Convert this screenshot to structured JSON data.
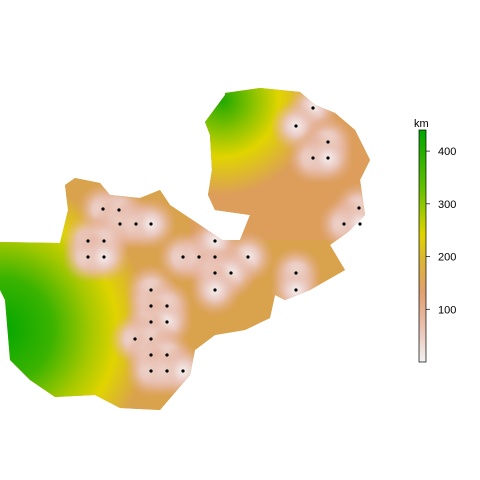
{
  "legend": {
    "title": "km",
    "ticks": [
      100,
      200,
      300,
      400
    ],
    "range": [
      0,
      440
    ],
    "colors": [
      "#f2f2f2",
      "#e8b39a",
      "#d8a04a",
      "#e0d400",
      "#62c000",
      "#00a600"
    ]
  },
  "points": [
    {
      "lon": 103,
      "lat": 209
    },
    {
      "lon": 119,
      "lat": 210
    },
    {
      "lon": 120,
      "lat": 224
    },
    {
      "lon": 136,
      "lat": 224
    },
    {
      "lon": 151,
      "lat": 224
    },
    {
      "lon": 88,
      "lat": 241
    },
    {
      "lon": 104,
      "lat": 241
    },
    {
      "lon": 88,
      "lat": 257
    },
    {
      "lon": 104,
      "lat": 257
    },
    {
      "lon": 183,
      "lat": 257
    },
    {
      "lon": 199,
      "lat": 257
    },
    {
      "lon": 215,
      "lat": 257
    },
    {
      "lon": 215,
      "lat": 241
    },
    {
      "lon": 248,
      "lat": 257
    },
    {
      "lon": 215,
      "lat": 273
    },
    {
      "lon": 231,
      "lat": 273
    },
    {
      "lon": 215,
      "lat": 290
    },
    {
      "lon": 151,
      "lat": 290
    },
    {
      "lon": 151,
      "lat": 306
    },
    {
      "lon": 167,
      "lat": 306
    },
    {
      "lon": 151,
      "lat": 322
    },
    {
      "lon": 167,
      "lat": 322
    },
    {
      "lon": 135,
      "lat": 339
    },
    {
      "lon": 151,
      "lat": 339
    },
    {
      "lon": 151,
      "lat": 355
    },
    {
      "lon": 167,
      "lat": 355
    },
    {
      "lon": 151,
      "lat": 371
    },
    {
      "lon": 167,
      "lat": 371
    },
    {
      "lon": 183,
      "lat": 371
    },
    {
      "lon": 313,
      "lat": 108
    },
    {
      "lon": 296,
      "lat": 126
    },
    {
      "lon": 328,
      "lat": 142
    },
    {
      "lon": 313,
      "lat": 158
    },
    {
      "lon": 328,
      "lat": 158
    },
    {
      "lon": 359,
      "lat": 208
    },
    {
      "lon": 344,
      "lat": 224
    },
    {
      "lon": 360,
      "lat": 224
    },
    {
      "lon": 296,
      "lat": 273
    },
    {
      "lon": 296,
      "lat": 290
    }
  ]
}
